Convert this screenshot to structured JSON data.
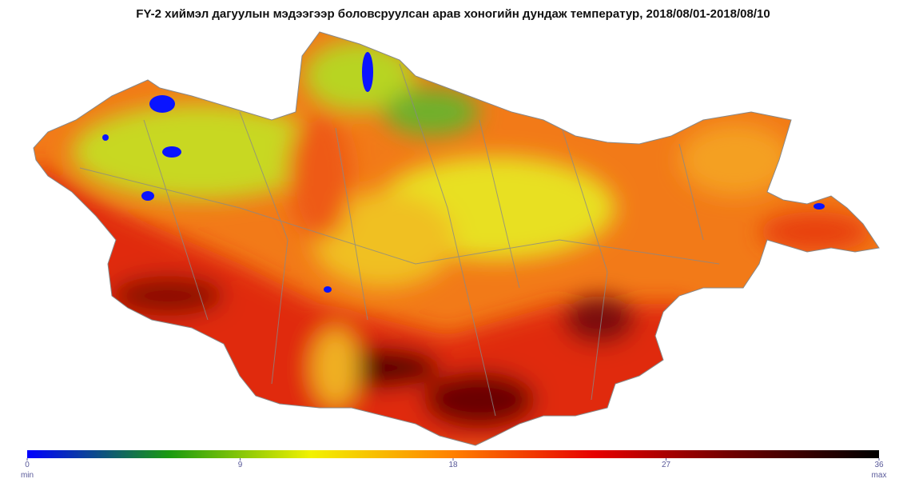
{
  "title": "FY-2 хиймэл дагуулын мэдээгээр боловсруулсан арав хоногийн дундаж температур, 2018/08/01-2018/08/10",
  "colorbar": {
    "ticks": [
      0,
      9,
      18,
      27,
      36
    ],
    "min_label": "min",
    "max_label": "max",
    "colors": [
      "#0000ff",
      "#1a9a10",
      "#f2f200",
      "#ff8000",
      "#e60000",
      "#6b0000",
      "#000000"
    ]
  }
}
